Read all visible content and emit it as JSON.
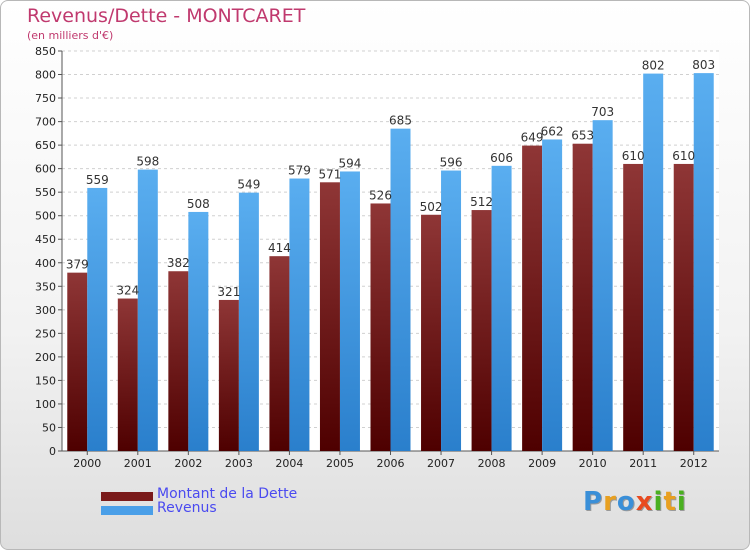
{
  "title": "Revenus/Dette - MONTCARET",
  "subtitle": "(en milliers d'€)",
  "legend": [
    {
      "label": "Montant de la Dette",
      "color": "#7a1a1a"
    },
    {
      "label": "Revenus",
      "color": "#4a9fe8"
    }
  ],
  "logo": {
    "text": "Proxiti",
    "letters": [
      "P",
      "r",
      "o",
      "x",
      "i",
      "t",
      "i"
    ]
  },
  "chart_data": {
    "type": "bar",
    "categories": [
      "2000",
      "2001",
      "2002",
      "2003",
      "2004",
      "2005",
      "2006",
      "2007",
      "2008",
      "2009",
      "2010",
      "2011",
      "2012"
    ],
    "series": [
      {
        "name": "Montant de la Dette",
        "values": [
          379,
          324,
          382,
          321,
          414,
          571,
          526,
          502,
          512,
          649,
          653,
          610,
          610
        ]
      },
      {
        "name": "Revenus",
        "values": [
          559,
          598,
          508,
          549,
          579,
          594,
          685,
          596,
          606,
          662,
          703,
          802,
          803
        ]
      }
    ],
    "ylim": [
      0,
      850
    ],
    "yticks": [
      0,
      50,
      100,
      150,
      200,
      250,
      300,
      350,
      400,
      450,
      500,
      550,
      600,
      650,
      700,
      750,
      800,
      850
    ],
    "grid": true,
    "legend_position": "bottom-left"
  }
}
